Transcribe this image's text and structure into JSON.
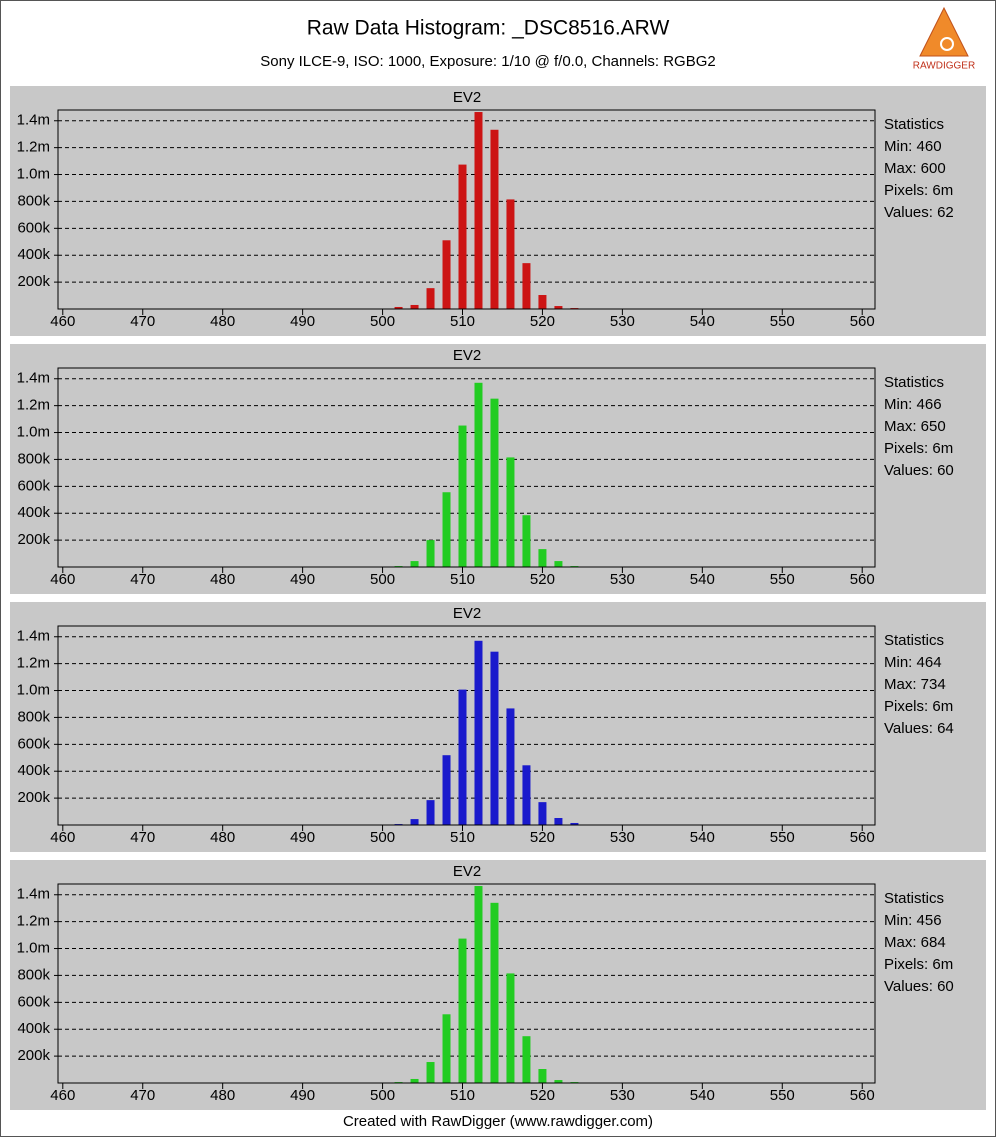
{
  "title": "Raw Data Histogram: _DSC8516.ARW",
  "subtitle": "Sony ILCE-9, ISO: 1000, Exposure: 1/10 @ f/0.0, Channels: RGBG2",
  "footer": "Created with RawDigger (www.rawdigger.com)",
  "logo": "RAWDIGGER",
  "chart_data": [
    {
      "type": "bar",
      "title": "EV2",
      "color": "#cc1414",
      "x": [
        502,
        504,
        506,
        508,
        510,
        512,
        514,
        516,
        518,
        520,
        522,
        524
      ],
      "values": [
        15000,
        30000,
        155000,
        511000,
        1074000,
        1465000,
        1333000,
        815000,
        341000,
        104000,
        22000,
        7000
      ],
      "statistics": [
        "Statistics",
        "Min: 460",
        "Max: 600",
        "Pixels: 6m",
        "Values: 62"
      ],
      "xlim": [
        459.4,
        561.6
      ],
      "xticks": [
        460,
        470,
        480,
        490,
        500,
        510,
        520,
        530,
        540,
        550,
        560
      ],
      "ylim": [
        0,
        1480000
      ],
      "yticks": [
        {
          "value": 200000,
          "label": "200k"
        },
        {
          "value": 400000,
          "label": "400k"
        },
        {
          "value": 600000,
          "label": "600k"
        },
        {
          "value": 800000,
          "label": "800k"
        },
        {
          "value": 1000000,
          "label": "1.0m"
        },
        {
          "value": 1200000,
          "label": "1.2m"
        },
        {
          "value": 1400000,
          "label": "1.4m"
        }
      ],
      "grid": true
    },
    {
      "type": "bar",
      "title": "EV2",
      "color": "#22cc22",
      "x": [
        502,
        504,
        506,
        508,
        510,
        512,
        514,
        516,
        518,
        520,
        522,
        524
      ],
      "values": [
        7000,
        44000,
        200000,
        556000,
        1052000,
        1370000,
        1252000,
        815000,
        385000,
        133000,
        44000,
        7000
      ],
      "statistics": [
        "Statistics",
        "Min: 466",
        "Max: 650",
        "Pixels: 6m",
        "Values: 60"
      ],
      "xlim": [
        459.4,
        561.6
      ],
      "xticks": [
        460,
        470,
        480,
        490,
        500,
        510,
        520,
        530,
        540,
        550,
        560
      ],
      "ylim": [
        0,
        1480000
      ],
      "yticks": [
        {
          "value": 200000,
          "label": "200k"
        },
        {
          "value": 400000,
          "label": "400k"
        },
        {
          "value": 600000,
          "label": "600k"
        },
        {
          "value": 800000,
          "label": "800k"
        },
        {
          "value": 1000000,
          "label": "1.0m"
        },
        {
          "value": 1200000,
          "label": "1.2m"
        },
        {
          "value": 1400000,
          "label": "1.4m"
        }
      ],
      "grid": true
    },
    {
      "type": "bar",
      "title": "EV2",
      "color": "#1a1acc",
      "x": [
        502,
        504,
        506,
        508,
        510,
        512,
        514,
        516,
        518,
        520,
        522,
        524
      ],
      "values": [
        7000,
        44000,
        185000,
        519000,
        1007000,
        1370000,
        1289000,
        867000,
        444000,
        170000,
        52000,
        15000
      ],
      "statistics": [
        "Statistics",
        "Min: 464",
        "Max: 734",
        "Pixels: 6m",
        "Values: 64"
      ],
      "xlim": [
        459.4,
        561.6
      ],
      "xticks": [
        460,
        470,
        480,
        490,
        500,
        510,
        520,
        530,
        540,
        550,
        560
      ],
      "ylim": [
        0,
        1480000
      ],
      "yticks": [
        {
          "value": 200000,
          "label": "200k"
        },
        {
          "value": 400000,
          "label": "400k"
        },
        {
          "value": 600000,
          "label": "600k"
        },
        {
          "value": 800000,
          "label": "800k"
        },
        {
          "value": 1000000,
          "label": "1.0m"
        },
        {
          "value": 1200000,
          "label": "1.2m"
        },
        {
          "value": 1400000,
          "label": "1.4m"
        }
      ],
      "grid": true
    },
    {
      "type": "bar",
      "title": "EV2",
      "color": "#22cc22",
      "x": [
        502,
        504,
        506,
        508,
        510,
        512,
        514,
        516,
        518,
        520,
        522,
        524
      ],
      "values": [
        7000,
        30000,
        156000,
        511000,
        1074000,
        1465000,
        1340000,
        815000,
        348000,
        104000,
        22000,
        7000
      ],
      "statistics": [
        "Statistics",
        "Min: 456",
        "Max: 684",
        "Pixels: 6m",
        "Values: 60"
      ],
      "xlim": [
        459.4,
        561.6
      ],
      "xticks": [
        460,
        470,
        480,
        490,
        500,
        510,
        520,
        530,
        540,
        550,
        560
      ],
      "ylim": [
        0,
        1480000
      ],
      "yticks": [
        {
          "value": 200000,
          "label": "200k"
        },
        {
          "value": 400000,
          "label": "400k"
        },
        {
          "value": 600000,
          "label": "600k"
        },
        {
          "value": 800000,
          "label": "800k"
        },
        {
          "value": 1000000,
          "label": "1.0m"
        },
        {
          "value": 1200000,
          "label": "1.2m"
        },
        {
          "value": 1400000,
          "label": "1.4m"
        }
      ],
      "grid": true
    }
  ]
}
